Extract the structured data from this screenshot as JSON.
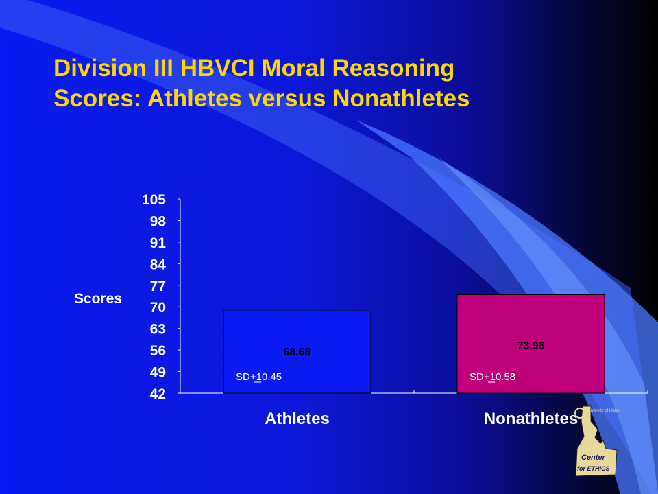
{
  "slide": {
    "title_line1": "Division III HBVCI Moral Reasoning",
    "title_line2": "Scores:  Athletes versus Nonathletes"
  },
  "colors": {
    "title": "#FFD700",
    "athletes_bar": "#0A1AF2",
    "nonathletes_bar": "#C0007A",
    "text": "#FFFFFF"
  },
  "logo": {
    "icon": "center-for-ethics-logo",
    "text_top": "University of Idaho",
    "text_line1": "Center",
    "text_line2": "for ETHICS"
  },
  "chart_data": {
    "type": "bar",
    "title": "",
    "xlabel": "",
    "ylabel": "Scores",
    "ylim": [
      42,
      105
    ],
    "yticks": [
      105,
      98,
      91,
      84,
      77,
      70,
      63,
      56,
      49,
      42
    ],
    "categories": [
      "Athletes",
      "Nonathletes"
    ],
    "values": [
      68.68,
      73.96
    ],
    "value_labels": [
      "68.68",
      "73.96"
    ],
    "sd_labels": [
      "SD+10.45",
      "SD+10.58"
    ],
    "grid": false,
    "legend": "none"
  }
}
